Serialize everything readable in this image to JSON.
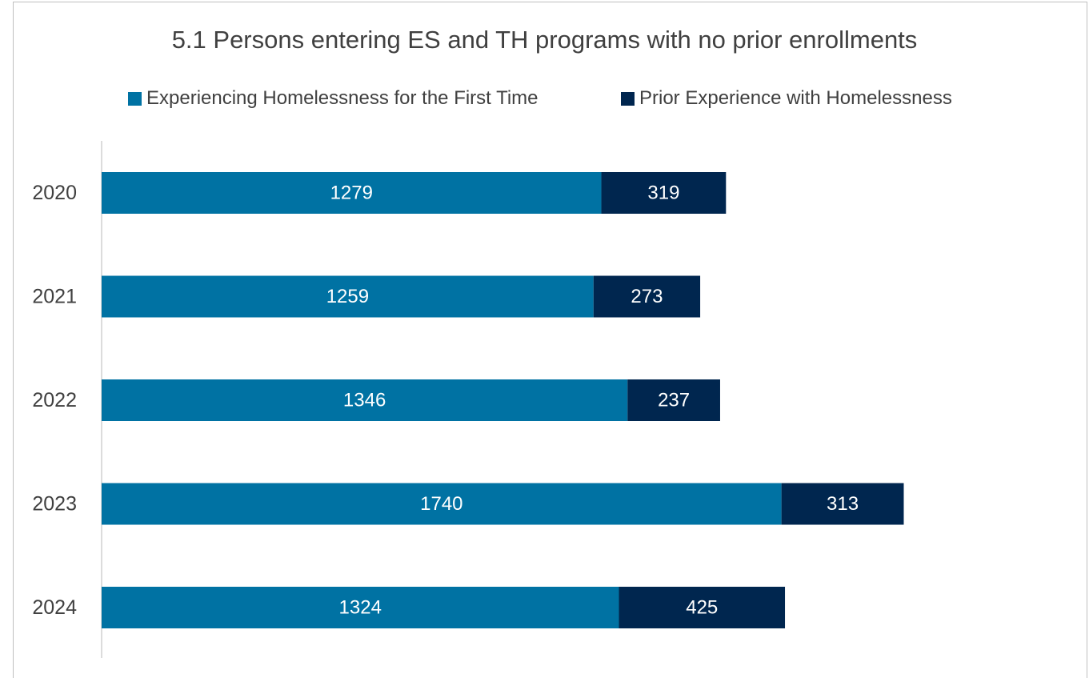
{
  "colors": {
    "first_time": "#0072a3",
    "prior": "#00264f",
    "axis": "#d0d0d0",
    "text": "#404040"
  },
  "chart_data": {
    "type": "bar",
    "orientation": "horizontal",
    "stacked": true,
    "title": "5.1 Persons entering ES and TH programs with no prior enrollments",
    "categories": [
      "2020",
      "2021",
      "2022",
      "2023",
      "2024"
    ],
    "series": [
      {
        "name": "Experiencing Homelessness for the First Time",
        "values": [
          1279,
          1259,
          1346,
          1740,
          1324
        ]
      },
      {
        "name": "Prior Experience with Homelessness",
        "values": [
          319,
          273,
          237,
          313,
          425
        ]
      }
    ],
    "legend": "top",
    "grid": false
  }
}
